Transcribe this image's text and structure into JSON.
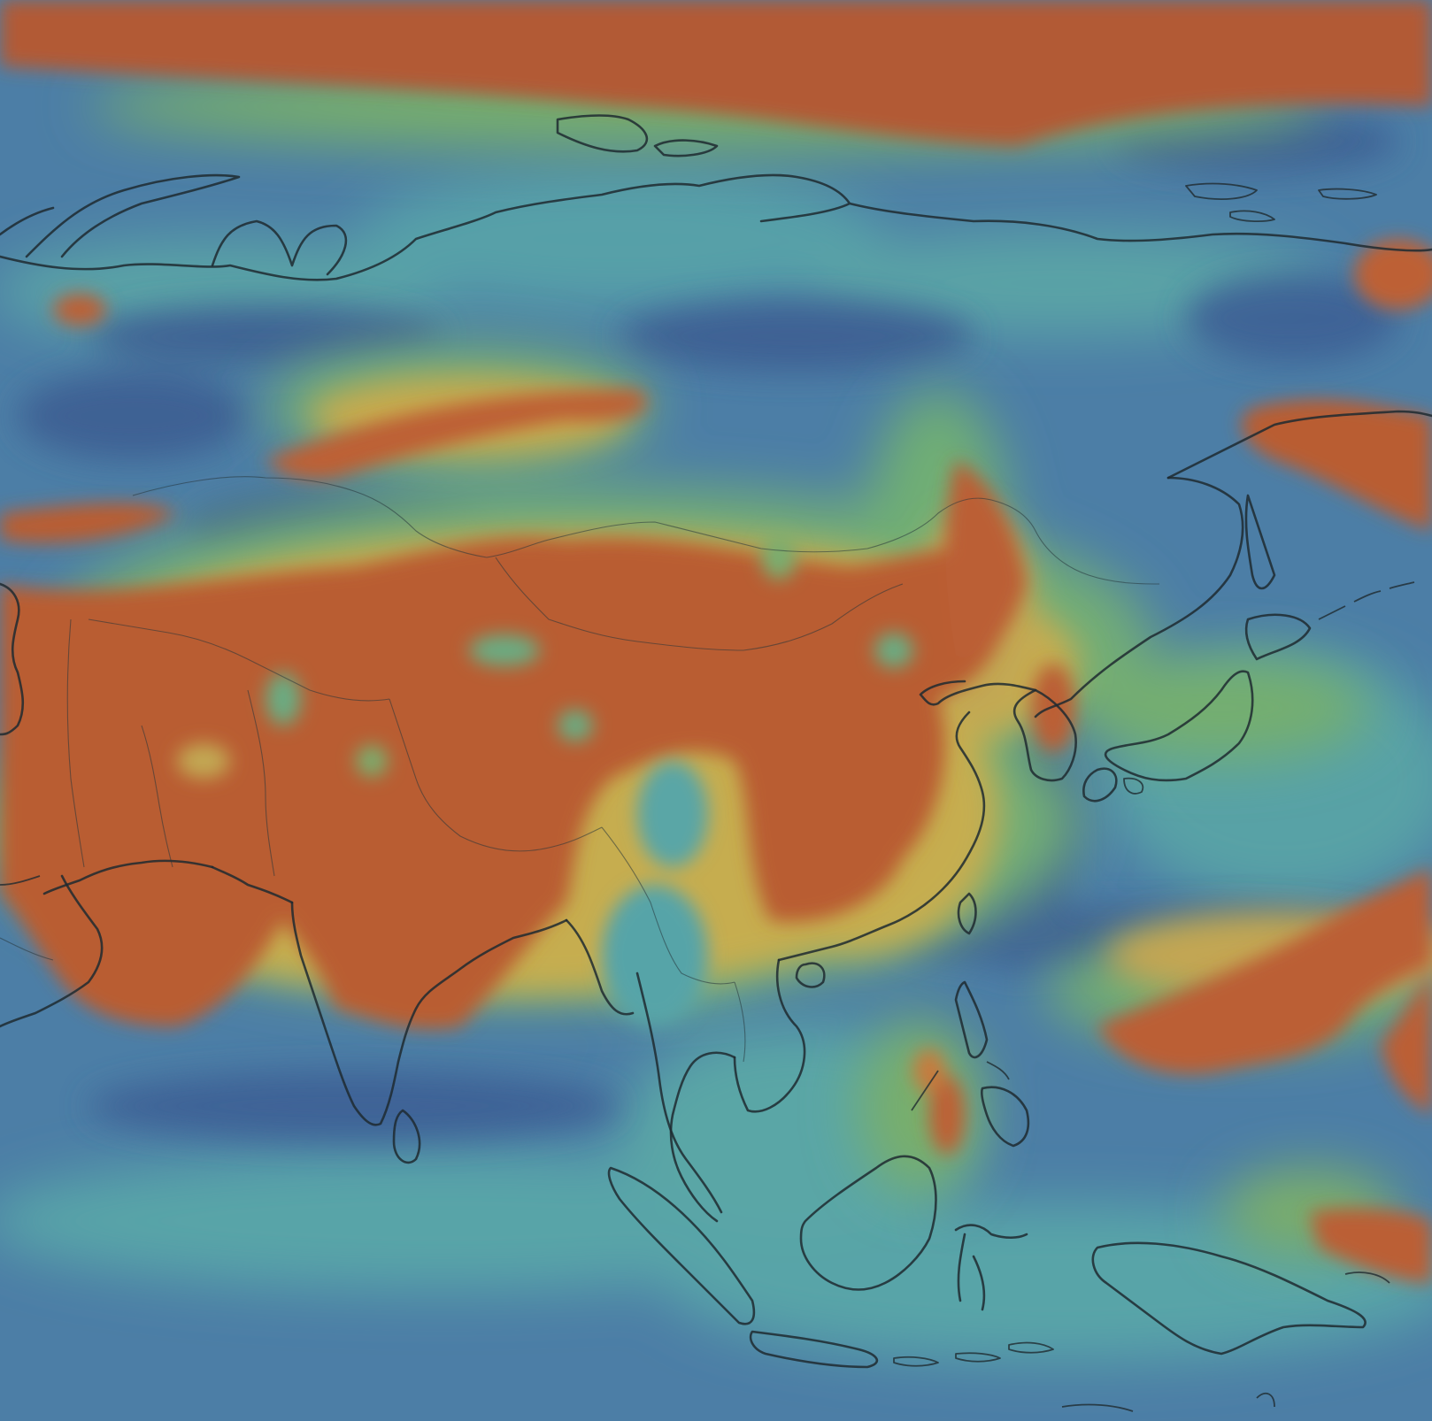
{
  "map": {
    "colors": {
      "background": "#3f6f9a",
      "low_dark": "#3d5f93",
      "low": "#4d7fa8",
      "mid_cyan": "#56a6a8",
      "mid_green": "#6fb07a",
      "high_yellow": "#c9b14e",
      "high_orange": "#c2693a",
      "peak": "#b4582f",
      "coastline": "#1f2a30"
    }
  }
}
